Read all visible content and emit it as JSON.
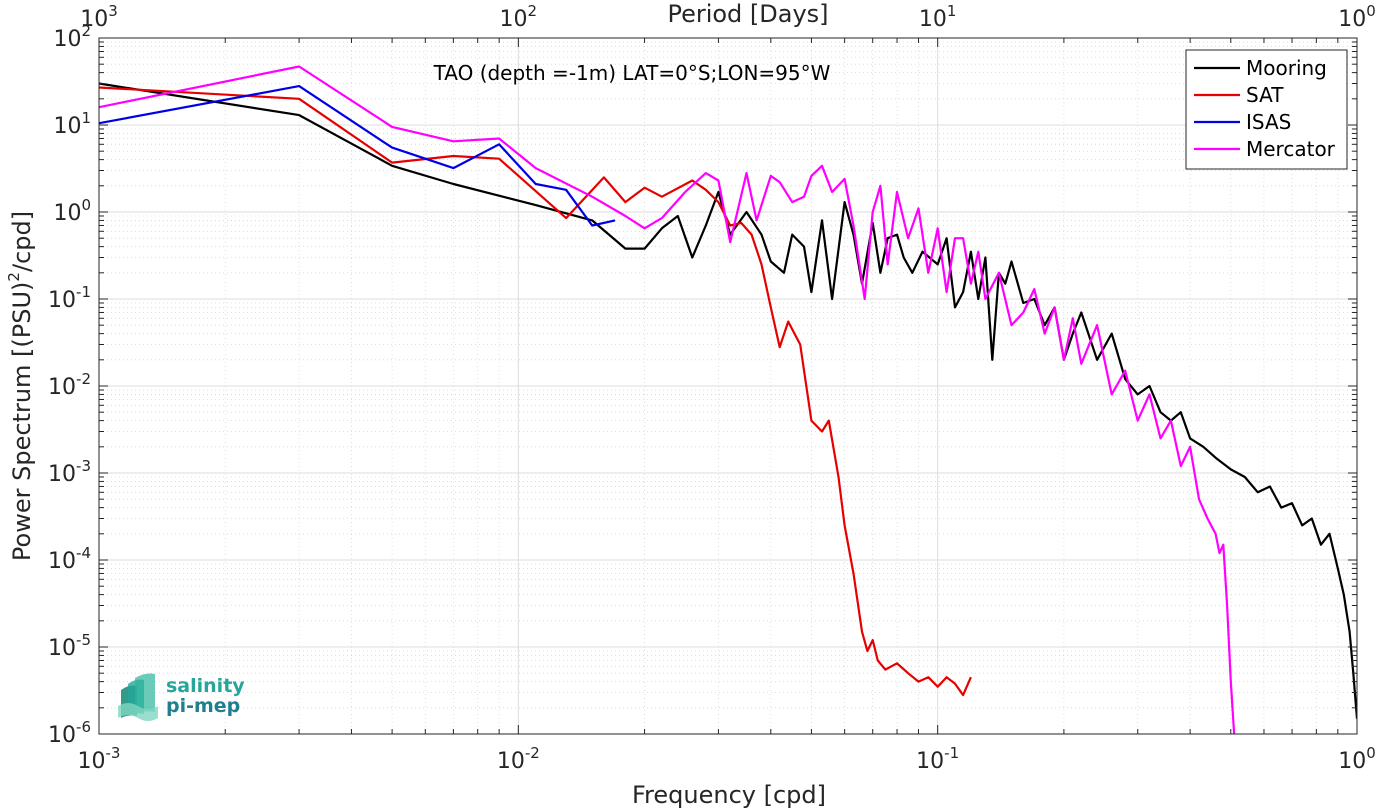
{
  "chart_data": {
    "type": "line",
    "title": "TAO (depth =-1m) LAT=0°S;LON=95°W",
    "xlabel": "Frequency [cpd]",
    "ylabel_main": "Power Spectrum [(PSU)",
    "ylabel_sup": "2",
    "ylabel_tail": "/cpd]",
    "top_xlabel": "Period [Days]",
    "x_scale": "log",
    "y_scale": "log",
    "xlim": [
      0.001,
      1
    ],
    "ylim": [
      1e-06,
      100
    ],
    "grid": true,
    "legend_position": "top-right",
    "x_ticks": [
      {
        "value": 0.001,
        "base": "10",
        "exp": "-3"
      },
      {
        "value": 0.01,
        "base": "10",
        "exp": "-2"
      },
      {
        "value": 0.1,
        "base": "10",
        "exp": "-1"
      },
      {
        "value": 1,
        "base": "10",
        "exp": "0"
      }
    ],
    "top_ticks": [
      {
        "value": 0.001,
        "base": "10",
        "exp": "3"
      },
      {
        "value": 0.01,
        "base": "10",
        "exp": "2"
      },
      {
        "value": 0.1,
        "base": "10",
        "exp": "1"
      },
      {
        "value": 1,
        "base": "10",
        "exp": "0"
      }
    ],
    "y_ticks": [
      {
        "value": 100,
        "base": "10",
        "exp": "2"
      },
      {
        "value": 10,
        "base": "10",
        "exp": "1"
      },
      {
        "value": 1,
        "base": "10",
        "exp": "0"
      },
      {
        "value": 0.1,
        "base": "10",
        "exp": "-1"
      },
      {
        "value": 0.01,
        "base": "10",
        "exp": "-2"
      },
      {
        "value": 0.001,
        "base": "10",
        "exp": "-3"
      },
      {
        "value": 0.0001,
        "base": "10",
        "exp": "-4"
      },
      {
        "value": 1e-05,
        "base": "10",
        "exp": "-5"
      },
      {
        "value": 1e-06,
        "base": "10",
        "exp": "-6"
      }
    ],
    "series": [
      {
        "name": "Mooring",
        "color": "#000000",
        "points": [
          [
            0.001,
            30
          ],
          [
            0.003,
            13
          ],
          [
            0.005,
            3.4
          ],
          [
            0.007,
            2.1
          ],
          [
            0.011,
            1.2
          ],
          [
            0.015,
            0.8
          ],
          [
            0.018,
            0.38
          ],
          [
            0.02,
            0.38
          ],
          [
            0.022,
            0.65
          ],
          [
            0.024,
            0.9
          ],
          [
            0.026,
            0.3
          ],
          [
            0.028,
            0.7
          ],
          [
            0.03,
            1.7
          ],
          [
            0.032,
            0.55
          ],
          [
            0.035,
            1.0
          ],
          [
            0.038,
            0.55
          ],
          [
            0.04,
            0.27
          ],
          [
            0.043,
            0.2
          ],
          [
            0.045,
            0.55
          ],
          [
            0.048,
            0.4
          ],
          [
            0.05,
            0.12
          ],
          [
            0.053,
            0.8
          ],
          [
            0.056,
            0.1
          ],
          [
            0.06,
            1.3
          ],
          [
            0.063,
            0.55
          ],
          [
            0.066,
            0.15
          ],
          [
            0.07,
            0.75
          ],
          [
            0.073,
            0.2
          ],
          [
            0.076,
            0.5
          ],
          [
            0.08,
            0.55
          ],
          [
            0.083,
            0.3
          ],
          [
            0.087,
            0.2
          ],
          [
            0.092,
            0.35
          ],
          [
            0.1,
            0.25
          ],
          [
            0.105,
            0.5
          ],
          [
            0.11,
            0.08
          ],
          [
            0.115,
            0.12
          ],
          [
            0.12,
            0.35
          ],
          [
            0.125,
            0.1
          ],
          [
            0.13,
            0.3
          ],
          [
            0.135,
            0.02
          ],
          [
            0.14,
            0.2
          ],
          [
            0.145,
            0.15
          ],
          [
            0.15,
            0.27
          ],
          [
            0.16,
            0.09
          ],
          [
            0.17,
            0.1
          ],
          [
            0.18,
            0.05
          ],
          [
            0.19,
            0.08
          ],
          [
            0.2,
            0.02
          ],
          [
            0.21,
            0.04
          ],
          [
            0.22,
            0.07
          ],
          [
            0.24,
            0.02
          ],
          [
            0.26,
            0.04
          ],
          [
            0.28,
            0.012
          ],
          [
            0.3,
            0.008
          ],
          [
            0.32,
            0.01
          ],
          [
            0.34,
            0.005
          ],
          [
            0.36,
            0.004
          ],
          [
            0.38,
            0.005
          ],
          [
            0.4,
            0.0025
          ],
          [
            0.43,
            0.002
          ],
          [
            0.46,
            0.0015
          ],
          [
            0.5,
            0.0011
          ],
          [
            0.54,
            0.0009
          ],
          [
            0.58,
            0.0006
          ],
          [
            0.62,
            0.0007
          ],
          [
            0.66,
            0.0004
          ],
          [
            0.7,
            0.00045
          ],
          [
            0.74,
            0.00025
          ],
          [
            0.78,
            0.0003
          ],
          [
            0.82,
            0.00015
          ],
          [
            0.86,
            0.0002
          ],
          [
            0.9,
            8e-05
          ],
          [
            0.93,
            4e-05
          ],
          [
            0.96,
            1.5e-05
          ],
          [
            0.98,
            5e-06
          ],
          [
            1.0,
            1.5e-06
          ]
        ]
      },
      {
        "name": "SAT",
        "color": "#e60000",
        "points": [
          [
            0.001,
            27
          ],
          [
            0.003,
            20
          ],
          [
            0.005,
            3.7
          ],
          [
            0.007,
            4.4
          ],
          [
            0.009,
            4.1
          ],
          [
            0.013,
            0.85
          ],
          [
            0.016,
            2.5
          ],
          [
            0.018,
            1.3
          ],
          [
            0.02,
            1.9
          ],
          [
            0.022,
            1.5
          ],
          [
            0.026,
            2.3
          ],
          [
            0.028,
            1.8
          ],
          [
            0.03,
            1.3
          ],
          [
            0.032,
            0.7
          ],
          [
            0.034,
            0.75
          ],
          [
            0.036,
            0.55
          ],
          [
            0.038,
            0.25
          ],
          [
            0.04,
            0.08
          ],
          [
            0.042,
            0.028
          ],
          [
            0.044,
            0.055
          ],
          [
            0.047,
            0.03
          ],
          [
            0.05,
            0.004
          ],
          [
            0.053,
            0.003
          ],
          [
            0.055,
            0.004
          ],
          [
            0.058,
            0.0009
          ],
          [
            0.06,
            0.00025
          ],
          [
            0.063,
            7e-05
          ],
          [
            0.066,
            1.5e-05
          ],
          [
            0.068,
            9e-06
          ],
          [
            0.07,
            1.2e-05
          ],
          [
            0.072,
            7e-06
          ],
          [
            0.075,
            5.5e-06
          ],
          [
            0.08,
            6.5e-06
          ],
          [
            0.085,
            5e-06
          ],
          [
            0.09,
            4e-06
          ],
          [
            0.095,
            4.5e-06
          ],
          [
            0.1,
            3.5e-06
          ],
          [
            0.105,
            4.5e-06
          ],
          [
            0.11,
            3.8e-06
          ],
          [
            0.115,
            2.8e-06
          ],
          [
            0.12,
            4.5e-06
          ]
        ]
      },
      {
        "name": "ISAS",
        "color": "#0000e6",
        "points": [
          [
            0.001,
            10.5
          ],
          [
            0.003,
            28
          ],
          [
            0.005,
            5.5
          ],
          [
            0.007,
            3.2
          ],
          [
            0.009,
            6
          ],
          [
            0.011,
            2.1
          ],
          [
            0.013,
            1.8
          ],
          [
            0.015,
            0.7
          ],
          [
            0.017,
            0.8
          ]
        ]
      },
      {
        "name": "Mercator",
        "color": "#ff00ff",
        "points": [
          [
            0.001,
            16
          ],
          [
            0.003,
            47
          ],
          [
            0.005,
            9.5
          ],
          [
            0.007,
            6.5
          ],
          [
            0.009,
            7
          ],
          [
            0.011,
            3.2
          ],
          [
            0.015,
            1.5
          ],
          [
            0.018,
            0.9
          ],
          [
            0.02,
            0.65
          ],
          [
            0.022,
            0.85
          ],
          [
            0.025,
            1.7
          ],
          [
            0.028,
            2.8
          ],
          [
            0.03,
            2.3
          ],
          [
            0.032,
            0.45
          ],
          [
            0.035,
            2.8
          ],
          [
            0.037,
            0.8
          ],
          [
            0.04,
            2.6
          ],
          [
            0.042,
            2.2
          ],
          [
            0.045,
            1.3
          ],
          [
            0.048,
            1.5
          ],
          [
            0.05,
            2.6
          ],
          [
            0.053,
            3.4
          ],
          [
            0.056,
            1.7
          ],
          [
            0.06,
            2.4
          ],
          [
            0.063,
            0.7
          ],
          [
            0.067,
            0.1
          ],
          [
            0.07,
            1.0
          ],
          [
            0.073,
            2.0
          ],
          [
            0.076,
            0.25
          ],
          [
            0.08,
            1.7
          ],
          [
            0.085,
            0.5
          ],
          [
            0.09,
            1.1
          ],
          [
            0.095,
            0.2
          ],
          [
            0.1,
            0.65
          ],
          [
            0.105,
            0.12
          ],
          [
            0.11,
            0.5
          ],
          [
            0.115,
            0.5
          ],
          [
            0.12,
            0.15
          ],
          [
            0.125,
            0.35
          ],
          [
            0.13,
            0.1
          ],
          [
            0.14,
            0.2
          ],
          [
            0.15,
            0.05
          ],
          [
            0.16,
            0.07
          ],
          [
            0.17,
            0.13
          ],
          [
            0.18,
            0.04
          ],
          [
            0.19,
            0.08
          ],
          [
            0.2,
            0.02
          ],
          [
            0.21,
            0.06
          ],
          [
            0.22,
            0.018
          ],
          [
            0.24,
            0.05
          ],
          [
            0.26,
            0.008
          ],
          [
            0.28,
            0.015
          ],
          [
            0.3,
            0.004
          ],
          [
            0.32,
            0.008
          ],
          [
            0.34,
            0.0025
          ],
          [
            0.36,
            0.004
          ],
          [
            0.38,
            0.0012
          ],
          [
            0.4,
            0.002
          ],
          [
            0.42,
            0.0005
          ],
          [
            0.44,
            0.0003
          ],
          [
            0.46,
            0.0002
          ],
          [
            0.47,
            0.00012
          ],
          [
            0.48,
            0.00015
          ],
          [
            0.49,
            3e-05
          ],
          [
            0.5,
            4e-06
          ],
          [
            0.51,
            9e-07
          ]
        ]
      }
    ]
  },
  "logo": {
    "line1": "salinity",
    "line2": "pi-mep",
    "color": "#26a69a"
  }
}
